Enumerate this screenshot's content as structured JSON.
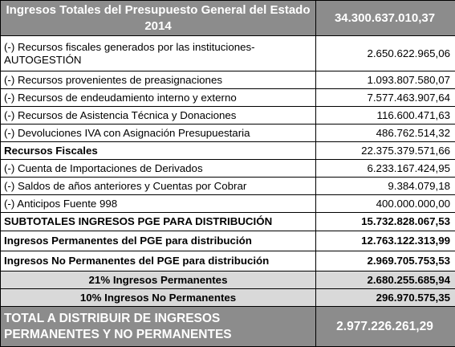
{
  "header": {
    "title": "Ingresos Totales del Presupuesto General del Estado 2014",
    "value": "34.300.637.010,37"
  },
  "rows": [
    {
      "label": "(-) Recursos fiscales generados por las instituciones-AUTOGESTIÓN",
      "value": "2.650.622.965,06"
    },
    {
      "label": "(-) Recursos provenientes de preasignaciones",
      "value": "1.093.807.580,07"
    },
    {
      "label": "(-) Recursos de endeudamiento interno y externo",
      "value": "7.577.463.907,64"
    },
    {
      "label": "(-) Recursos de Asistencia Técnica y Donaciones",
      "value": "116.600.471,63"
    },
    {
      "label": "(-) Devoluciones IVA con Asignación Presupuestaria",
      "value": "486.762.514,32"
    },
    {
      "label": "Recursos Fiscales",
      "value": "22.375.379.571,66"
    },
    {
      "label": "(-) Cuenta de Importaciones de Derivados",
      "value": "6.233.167.424,95"
    },
    {
      "label": "(-) Saldos de años anteriores y Cuentas por Cobrar",
      "value": "9.384.079,18"
    },
    {
      "label": "(-) Anticipos Fuente 998",
      "value": "400.000.000,00"
    }
  ],
  "subtotal": {
    "label": "SUBTOTALES INGRESOS PGE PARA DISTRIBUCIÓN",
    "value": "15.732.828.067,53"
  },
  "permanentes": {
    "label": "Ingresos Permanentes del PGE para distribución",
    "value": "12.763.122.313,99"
  },
  "no_permanentes": {
    "label": "Ingresos No Permanentes del PGE para distribución",
    "value": "2.969.705.753,53"
  },
  "pct21": {
    "label": "21% Ingresos Permanentes",
    "value": "2.680.255.685,94"
  },
  "pct10": {
    "label": "10% Ingresos No Permanentes",
    "value": "296.970.575,35"
  },
  "total": {
    "label": "TOTAL A DISTRIBUIR DE INGRESOS PERMANENTES Y NO PERMANENTES",
    "value": "2.977.226.261,29"
  }
}
